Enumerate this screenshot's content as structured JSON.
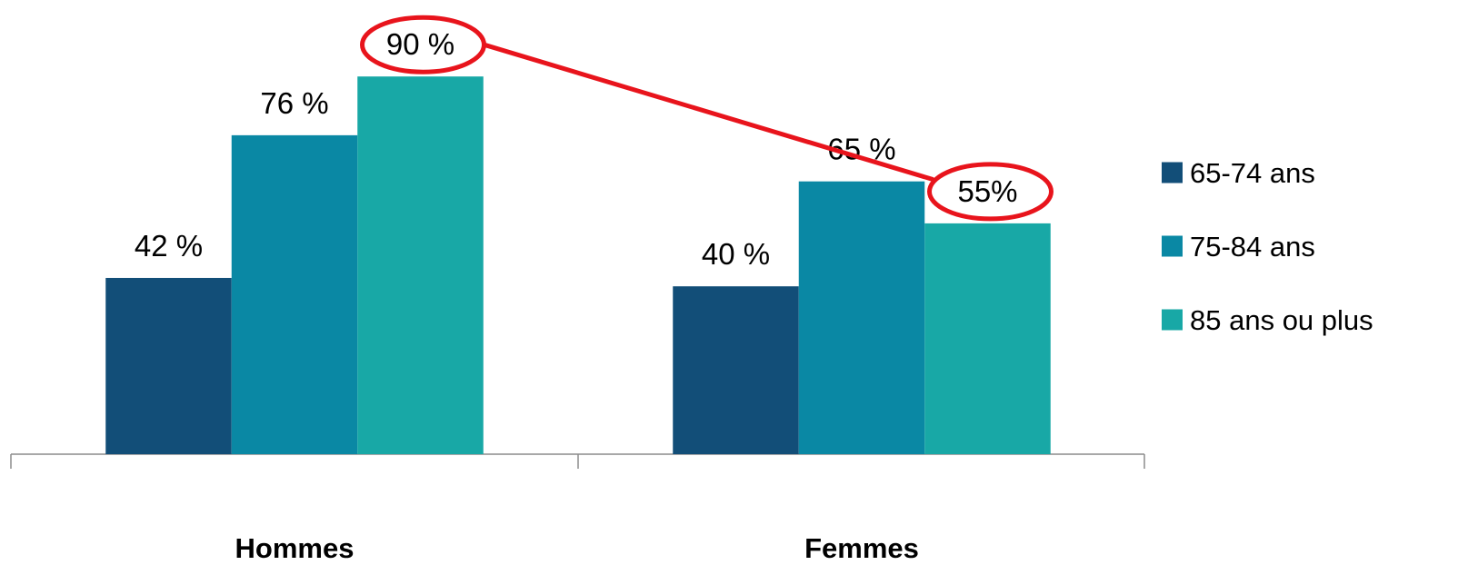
{
  "chart_data": {
    "type": "bar",
    "categories": [
      "Hommes",
      "Femmes"
    ],
    "series": [
      {
        "name": "65-74 ans",
        "color": "#124E78",
        "values": [
          42,
          40
        ],
        "labels": [
          "42 %",
          "40 %"
        ]
      },
      {
        "name": "75-84 ans",
        "color": "#0A88A4",
        "values": [
          76,
          65
        ],
        "labels": [
          "76 %",
          "65 %"
        ]
      },
      {
        "name": "85 ans ou plus",
        "color": "#18A8A6",
        "values": [
          90,
          55
        ],
        "labels": [
          "90 %",
          "55%"
        ]
      }
    ],
    "ylim": [
      0,
      100
    ],
    "grid": false,
    "legend_position": "right",
    "annotation": {
      "type": "highlight-connector",
      "color": "#E8141C",
      "series": "85 ans ou plus",
      "points": [
        "Hommes",
        "Femmes"
      ]
    }
  }
}
